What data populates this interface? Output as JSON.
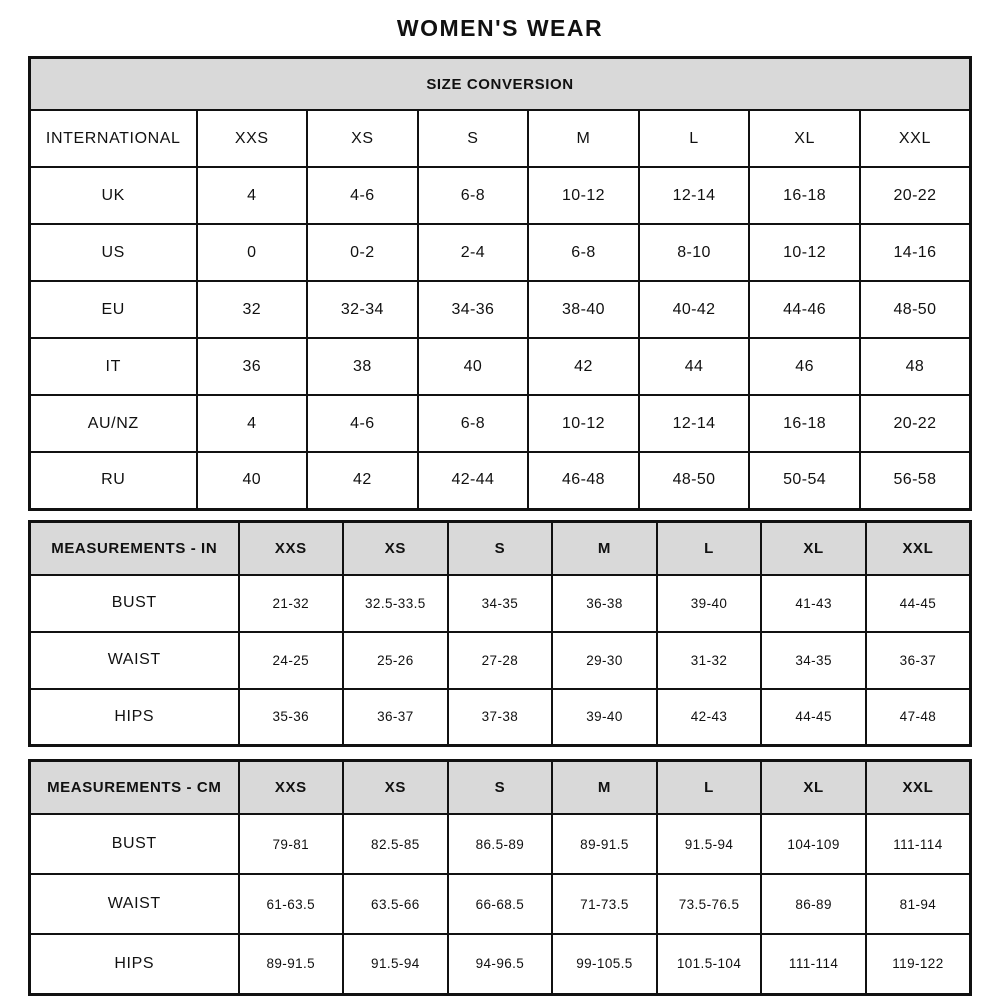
{
  "page": {
    "title": "WOMEN'S WEAR"
  },
  "colors": {
    "header_bg": "#d9d9d9",
    "border": "#111111",
    "text": "#111111"
  },
  "tables": [
    {
      "id": "size-conversion",
      "banner": "SIZE CONVERSION",
      "gray_header": false,
      "columns": [
        "INTERNATIONAL",
        "XXS",
        "XS",
        "S",
        "M",
        "L",
        "XL",
        "XXL"
      ],
      "rows": [
        {
          "label": "UK",
          "values": [
            "4",
            "4-6",
            "6-8",
            "10-12",
            "12-14",
            "16-18",
            "20-22"
          ]
        },
        {
          "label": "US",
          "values": [
            "0",
            "0-2",
            "2-4",
            "6-8",
            "8-10",
            "10-12",
            "14-16"
          ]
        },
        {
          "label": "EU",
          "values": [
            "32",
            "32-34",
            "34-36",
            "38-40",
            "40-42",
            "44-46",
            "48-50"
          ]
        },
        {
          "label": "IT",
          "values": [
            "36",
            "38",
            "40",
            "42",
            "44",
            "46",
            "48"
          ]
        },
        {
          "label": "AU/NZ",
          "values": [
            "4",
            "4-6",
            "6-8",
            "10-12",
            "12-14",
            "16-18",
            "20-22"
          ]
        },
        {
          "label": "RU",
          "values": [
            "40",
            "42",
            "42-44",
            "46-48",
            "48-50",
            "50-54",
            "56-58"
          ]
        }
      ]
    },
    {
      "id": "measurements-in",
      "banner": null,
      "gray_header": true,
      "columns": [
        "MEASUREMENTS - IN",
        "XXS",
        "XS",
        "S",
        "M",
        "L",
        "XL",
        "XXL"
      ],
      "rows": [
        {
          "label": "BUST",
          "values": [
            "21-32",
            "32.5-33.5",
            "34-35",
            "36-38",
            "39-40",
            "41-43",
            "44-45"
          ]
        },
        {
          "label": "WAIST",
          "values": [
            "24-25",
            "25-26",
            "27-28",
            "29-30",
            "31-32",
            "34-35",
            "36-37"
          ]
        },
        {
          "label": "HIPS",
          "values": [
            "35-36",
            "36-37",
            "37-38",
            "39-40",
            "42-43",
            "44-45",
            "47-48"
          ]
        }
      ]
    },
    {
      "id": "measurements-cm",
      "banner": null,
      "gray_header": true,
      "columns": [
        "MEASUREMENTS - CM",
        "XXS",
        "XS",
        "S",
        "M",
        "L",
        "XL",
        "XXL"
      ],
      "rows": [
        {
          "label": "BUST",
          "values": [
            "79-81",
            "82.5-85",
            "86.5-89",
            "89-91.5",
            "91.5-94",
            "104-109",
            "111-114"
          ]
        },
        {
          "label": "WAIST",
          "values": [
            "61-63.5",
            "63.5-66",
            "66-68.5",
            "71-73.5",
            "73.5-76.5",
            "86-89",
            "81-94"
          ]
        },
        {
          "label": "HIPS",
          "values": [
            "89-91.5",
            "91.5-94",
            "94-96.5",
            "99-105.5",
            "101.5-104",
            "111-114",
            "119-122"
          ]
        }
      ]
    }
  ]
}
